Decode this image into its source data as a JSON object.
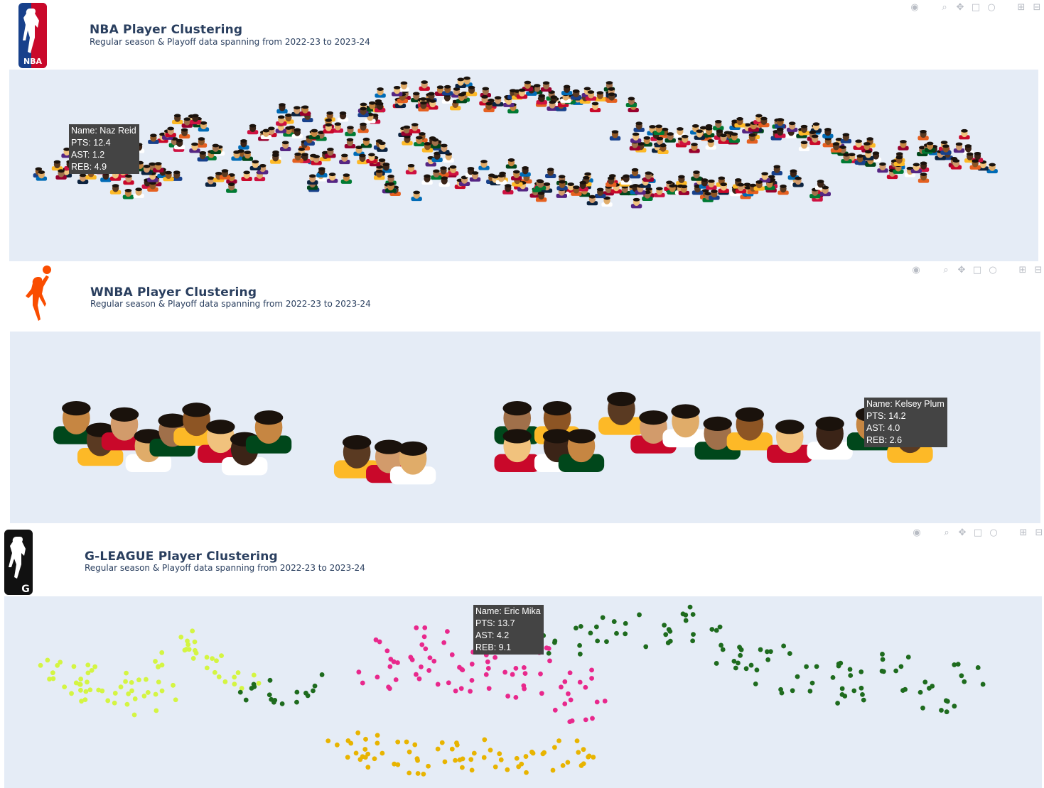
{
  "modebar_icons": [
    "camera-icon",
    "zoom-icon",
    "pan-icon",
    "box-select-icon",
    "lasso-icon",
    "zoom-in-icon",
    "zoom-out-icon",
    "autoscale-icon"
  ],
  "panels": [
    {
      "id": "nba",
      "title": "NBA Player Clustering",
      "subtitle": "Regular season & Playoff data spanning from 2022-23 to 2023-24",
      "logo_text": "NBA",
      "tooltip": {
        "name": "Name: Naz Reid",
        "pts": "PTS: 12.4",
        "ast": "AST: 1.2",
        "reb": "REB: 4.9"
      }
    },
    {
      "id": "wnba",
      "title": "WNBA Player Clustering",
      "subtitle": "Regular season & Playoff data spanning from 2022-23 to 2023-24",
      "tooltip": {
        "name": "Name: Kelsey Plum",
        "pts": "PTS: 14.2",
        "ast": "AST: 4.0",
        "reb": "REB: 2.6"
      }
    },
    {
      "id": "gleague",
      "title": "G-LEAGUE Player Clustering",
      "subtitle": "Regular season & Playoff data spanning from 2022-23 to 2023-24",
      "logo_text": "G",
      "tooltip": {
        "name": "Name: Eric Mika",
        "pts": "PTS: 13.7",
        "ast": "AST: 4.2",
        "reb": "REB: 9.1"
      }
    }
  ],
  "colors": {
    "plot_bg": "#e5ecf6",
    "title": "#2a3f5f",
    "nba_red": "#c9082a",
    "nba_blue": "#17408b",
    "wnba_orange": "#fa4d00",
    "cluster_lime": "#d4f542",
    "cluster_green": "#1e6b1e",
    "cluster_pink": "#e8288c",
    "cluster_gold": "#e8b400"
  },
  "chart_data": [
    {
      "type": "scatter",
      "panel": "nba",
      "markers": "player headshot images",
      "clusters": [
        {
          "name": "",
          "points": [
            [
              -9.5,
              2.0
            ],
            [
              -9.0,
              3.2
            ],
            [
              -8.6,
              1.4
            ],
            [
              -8.2,
              2.6
            ],
            [
              -7.8,
              0.8
            ],
            [
              -7.2,
              1.9
            ],
            [
              -6.8,
              3.8
            ],
            [
              -6.2,
              4.6
            ],
            [
              -5.6,
              3.1
            ],
            [
              -5.2,
              1.0
            ],
            [
              -4.8,
              2.2
            ],
            [
              -4.4,
              4.1
            ],
            [
              -4.0,
              5.2
            ],
            [
              -3.6,
              3.6
            ],
            [
              -3.2,
              2.4
            ],
            [
              -2.8,
              1.2
            ],
            [
              -2.4,
              4.8
            ],
            [
              -2.0,
              3.0
            ],
            [
              -1.6,
              5.6
            ],
            [
              -1.2,
              2.0
            ],
            [
              -0.8,
              0.6
            ],
            [
              -0.4,
              4.2
            ],
            [
              0.0,
              2.9
            ],
            [
              0.4,
              1.4
            ]
          ]
        },
        {
          "name": "",
          "points": [
            [
              -1.2,
              6.2
            ],
            [
              -0.6,
              6.8
            ],
            [
              0.0,
              6.4
            ],
            [
              0.6,
              6.9
            ],
            [
              1.2,
              6.3
            ],
            [
              1.8,
              6.7
            ],
            [
              2.4,
              6.2
            ],
            [
              3.0,
              6.6
            ],
            [
              3.6,
              6.8
            ],
            [
              4.2,
              6.4
            ]
          ]
        },
        {
          "name": "",
          "points": [
            [
              1.2,
              1.6
            ],
            [
              1.8,
              0.8
            ],
            [
              2.4,
              1.2
            ],
            [
              3.0,
              0.4
            ],
            [
              3.6,
              0.9
            ],
            [
              4.2,
              0.2
            ],
            [
              4.8,
              0.7
            ],
            [
              5.4,
              1.1
            ],
            [
              6.0,
              0.5
            ],
            [
              6.6,
              0.9
            ],
            [
              7.2,
              0.3
            ],
            [
              7.8,
              0.8
            ],
            [
              8.4,
              1.3
            ],
            [
              9.0,
              0.6
            ]
          ]
        },
        {
          "name": "",
          "points": [
            [
              4.8,
              3.8
            ],
            [
              5.4,
              4.0
            ],
            [
              6.0,
              3.7
            ],
            [
              6.6,
              4.1
            ],
            [
              7.2,
              3.8
            ],
            [
              7.8,
              4.4
            ],
            [
              8.4,
              4.6
            ],
            [
              9.0,
              4.2
            ],
            [
              9.6,
              3.6
            ],
            [
              10.2,
              3.0
            ],
            [
              10.8,
              2.4
            ],
            [
              11.4,
              1.8
            ],
            [
              12.0,
              2.9
            ],
            [
              12.6,
              3.6
            ],
            [
              13.2,
              2.4
            ]
          ]
        }
      ]
    },
    {
      "type": "scatter",
      "panel": "wnba",
      "markers": "player headshot images",
      "clusters": [
        {
          "name": "",
          "points": [
            [
              -9.2,
              2.6
            ],
            [
              -8.6,
              1.2
            ],
            [
              -8.0,
              2.2
            ],
            [
              -7.4,
              0.8
            ],
            [
              -6.8,
              1.8
            ],
            [
              -6.2,
              2.5
            ],
            [
              -5.6,
              1.4
            ],
            [
              -5.0,
              0.6
            ],
            [
              -4.4,
              2.0
            ]
          ]
        },
        {
          "name": "",
          "points": [
            [
              -2.2,
              0.4
            ],
            [
              -1.4,
              0.1
            ],
            [
              -0.8,
              0.0
            ]
          ]
        },
        {
          "name": "",
          "points": [
            [
              1.8,
              2.6
            ],
            [
              2.8,
              2.6
            ],
            [
              1.8,
              0.8
            ],
            [
              2.8,
              0.8
            ],
            [
              3.4,
              0.8
            ],
            [
              4.4,
              3.2
            ],
            [
              5.2,
              2.0
            ],
            [
              6.0,
              2.4
            ],
            [
              6.8,
              1.6
            ],
            [
              7.6,
              2.2
            ],
            [
              8.6,
              1.4
            ],
            [
              9.6,
              1.6
            ],
            [
              10.6,
              2.2
            ],
            [
              11.6,
              1.4
            ]
          ]
        }
      ]
    },
    {
      "type": "scatter",
      "panel": "gleague",
      "markers": "circles",
      "clusters": [
        {
          "name": "",
          "color": "#d4f542",
          "points": [
            [
              -9.6,
              3.6
            ],
            [
              -9.3,
              2.8
            ],
            [
              -9.0,
              2.0
            ],
            [
              -8.6,
              3.0
            ],
            [
              -8.2,
              1.6
            ],
            [
              -7.8,
              2.6
            ],
            [
              -7.4,
              1.2
            ],
            [
              -7.0,
              2.2
            ],
            [
              -6.6,
              4.4
            ],
            [
              -6.2,
              5.2
            ],
            [
              -5.8,
              4.6
            ],
            [
              -5.4,
              3.6
            ],
            [
              -5.0,
              2.6
            ]
          ]
        },
        {
          "name": "",
          "color": "#e8288c",
          "points": [
            [
              -1.6,
              2.8
            ],
            [
              -1.2,
              4.6
            ],
            [
              -0.8,
              3.6
            ],
            [
              -0.4,
              5.8
            ],
            [
              0.0,
              4.2
            ],
            [
              0.4,
              2.6
            ],
            [
              0.8,
              3.8
            ],
            [
              1.2,
              5.0
            ],
            [
              1.6,
              2.4
            ],
            [
              2.0,
              3.2
            ],
            [
              2.4,
              4.6
            ],
            [
              2.8,
              1.6
            ],
            [
              3.2,
              3.0
            ],
            [
              3.6,
              0.8
            ]
          ]
        },
        {
          "name": "",
          "color": "#e8b400",
          "points": [
            [
              -2.4,
              -0.8
            ],
            [
              -2.0,
              -1.6
            ],
            [
              -1.6,
              -2.4
            ],
            [
              -1.2,
              -1.4
            ],
            [
              -0.6,
              -2.6
            ],
            [
              0.0,
              -2.0
            ],
            [
              0.6,
              -2.8
            ],
            [
              1.2,
              -1.8
            ],
            [
              1.8,
              -2.6
            ],
            [
              2.4,
              -1.4
            ],
            [
              3.0,
              -2.4
            ],
            [
              3.6,
              -1.8
            ]
          ]
        },
        {
          "name": "",
          "color": "#1e6b1e",
          "points": [
            [
              -4.6,
              2.2
            ],
            [
              -4.0,
              1.8
            ],
            [
              -3.4,
              2.4
            ],
            [
              3.0,
              5.2
            ],
            [
              3.6,
              5.8
            ],
            [
              4.4,
              6.4
            ],
            [
              5.2,
              5.6
            ],
            [
              5.8,
              6.8
            ],
            [
              6.4,
              5.8
            ],
            [
              7.0,
              4.6
            ],
            [
              7.6,
              3.2
            ],
            [
              8.2,
              4.4
            ],
            [
              8.8,
              2.6
            ],
            [
              9.4,
              3.6
            ],
            [
              10.0,
              1.8
            ],
            [
              10.6,
              2.8
            ],
            [
              11.2,
              3.8
            ],
            [
              11.8,
              2.4
            ],
            [
              12.4,
              1.4
            ],
            [
              13.0,
              3.2
            ]
          ]
        }
      ]
    }
  ]
}
